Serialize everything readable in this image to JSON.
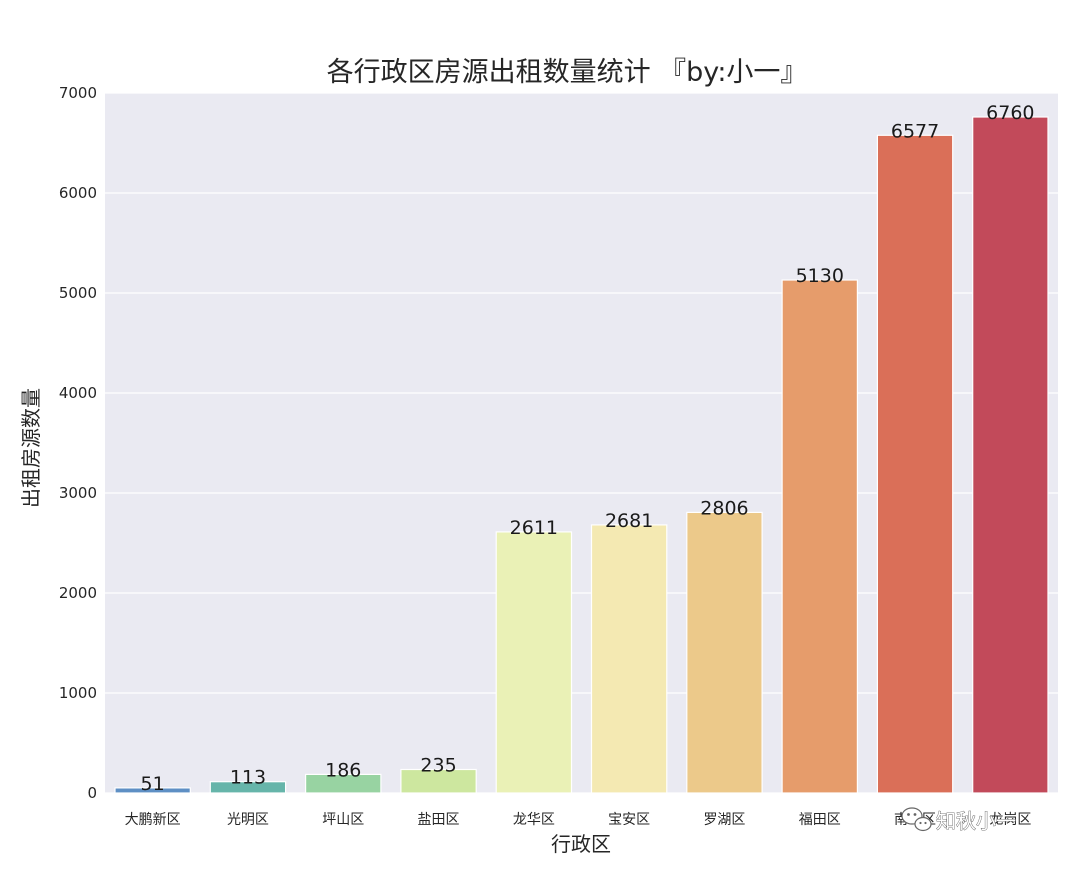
{
  "chart_data": {
    "type": "bar",
    "title": "各行政区房源出租数量统计 『by:小一』",
    "xlabel": "行政区",
    "ylabel": "出租房源数量",
    "categories": [
      "大鹏新区",
      "光明区",
      "坪山区",
      "盐田区",
      "龙华区",
      "宝安区",
      "罗湖区",
      "福田区",
      "南山区",
      "龙岗区"
    ],
    "values": [
      51,
      113,
      186,
      235,
      2611,
      2681,
      2806,
      5130,
      6577,
      6760
    ],
    "ylim": [
      0,
      7000
    ],
    "yticks": [
      0,
      1000,
      2000,
      3000,
      4000,
      5000,
      6000,
      7000
    ],
    "grid": true,
    "legend": "none",
    "colors": [
      "#5e8fc4",
      "#66b5aa",
      "#98d3a2",
      "#cde79f",
      "#eaf1b6",
      "#f4e9b2",
      "#ecc98a",
      "#e69c6b",
      "#da6f58",
      "#c24a5a"
    ],
    "background": "#eaeaf2"
  },
  "watermark": {
    "text": "知秋小一",
    "icon": "wechat-icon"
  }
}
